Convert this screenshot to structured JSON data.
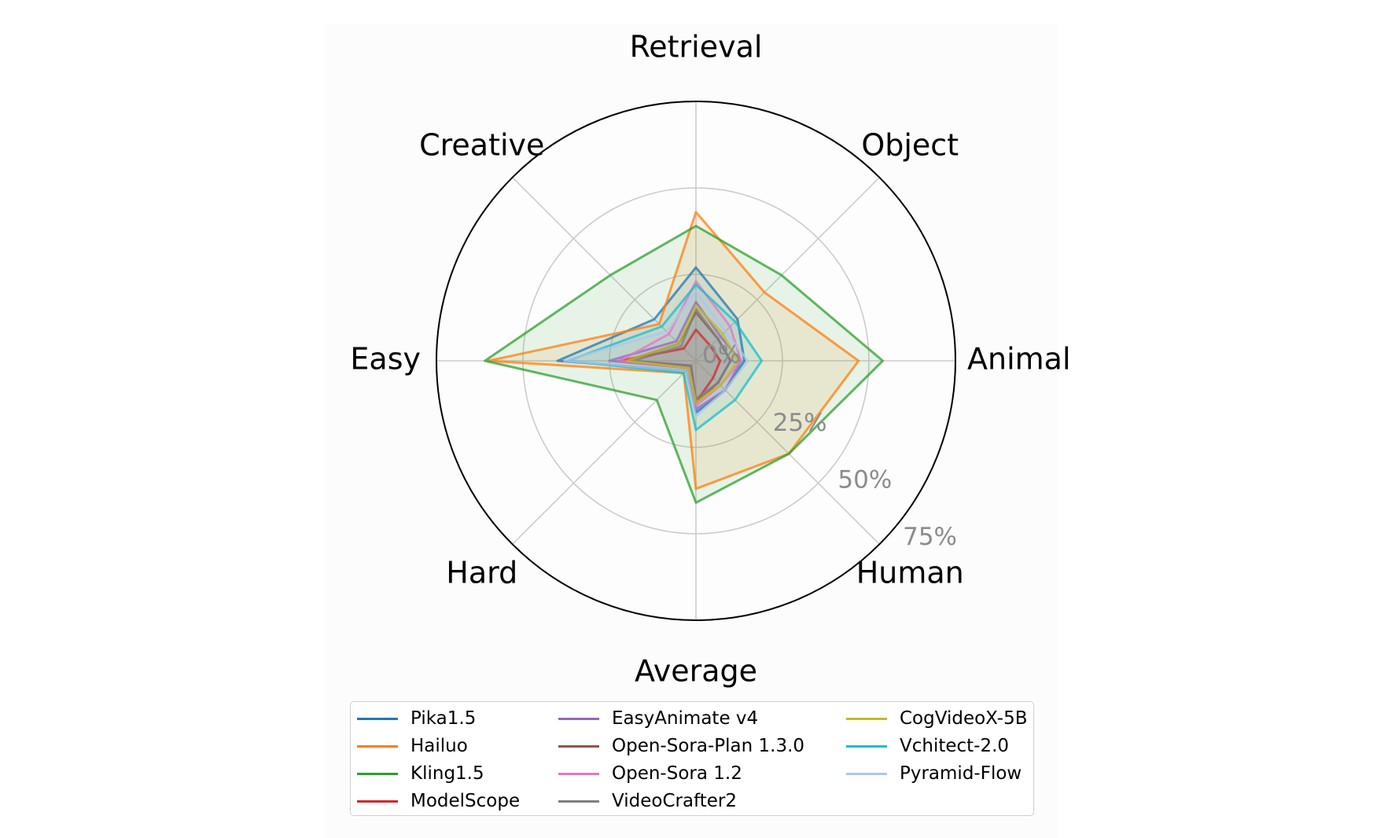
{
  "chart_data": {
    "type": "radar",
    "title": "",
    "axes": [
      "Retrieval",
      "Object",
      "Animal",
      "Human",
      "Average",
      "Hard",
      "Easy",
      "Creative"
    ],
    "r_ticks": [
      "0%",
      "25%",
      "50%",
      "75%"
    ],
    "r_tick_values": [
      0,
      25,
      50,
      75
    ],
    "r_max": 75,
    "grid": true,
    "legend_position": "bottom",
    "series": [
      {
        "name": "Pika1.5",
        "color": "#1f77b4",
        "values": [
          27,
          17,
          14,
          12,
          15,
          4,
          40,
          17
        ]
      },
      {
        "name": "Hailuo",
        "color": "#ff7f0e",
        "values": [
          43,
          28,
          47,
          38,
          37,
          5,
          60,
          15
        ]
      },
      {
        "name": "Kling1.5",
        "color": "#2ca02c",
        "values": [
          39,
          35,
          54,
          38,
          41,
          16,
          61,
          35
        ]
      },
      {
        "name": "ModelScope",
        "color": "#d62728",
        "values": [
          9,
          6,
          7,
          7,
          12,
          3,
          22,
          5
        ]
      },
      {
        "name": "EasyAnimate v4",
        "color": "#9467bd",
        "values": [
          17,
          10,
          13,
          12,
          14,
          3,
          25,
          8
        ]
      },
      {
        "name": "Open-Sora-Plan 1.3.0",
        "color": "#8c564b",
        "values": [
          14,
          9,
          10,
          9,
          12,
          2,
          20,
          7
        ]
      },
      {
        "name": "Open-Sora 1.2",
        "color": "#e377c2",
        "values": [
          23,
          14,
          13,
          10,
          13,
          3,
          22,
          11
        ]
      },
      {
        "name": "VideoCrafter2",
        "color": "#7f7f7f",
        "values": [
          15,
          9,
          10,
          9,
          11,
          2,
          18,
          6
        ]
      },
      {
        "name": "CogVideoX-5B",
        "color": "#bcbd22",
        "values": [
          16,
          11,
          12,
          10,
          12,
          3,
          20,
          7
        ]
      },
      {
        "name": "Vchitect-2.0",
        "color": "#17becf",
        "values": [
          22,
          16,
          19,
          16,
          20,
          5,
          37,
          14
        ]
      },
      {
        "name": "Pyramid-Flow",
        "color": "#aec7e8",
        "values": [
          20,
          12,
          15,
          12,
          16,
          4,
          38,
          12
        ]
      }
    ]
  }
}
